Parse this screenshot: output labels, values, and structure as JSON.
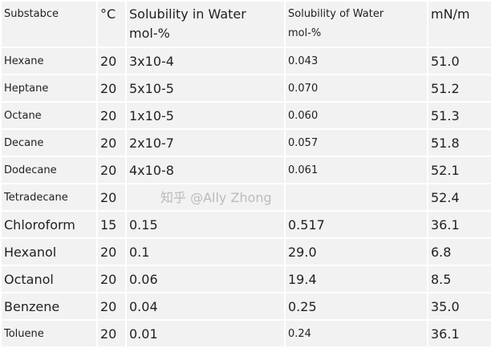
{
  "headers": [
    "Substabce",
    "°C",
    "Solubility in Water mol-%",
    "Solubility of Water mol-%",
    "mN/m"
  ],
  "rows": [
    {
      "substance": "Hexane",
      "temp": "20",
      "sol_in_water": "3x10-4",
      "sol_of_water": "0.043",
      "tension": "51.0"
    },
    {
      "substance": "Heptane",
      "temp": "20",
      "sol_in_water": "5x10-5",
      "sol_of_water": "0.070",
      "tension": "51.2"
    },
    {
      "substance": "Octane",
      "temp": "20",
      "sol_in_water": "1x10-5",
      "sol_of_water": "0.060",
      "tension": "51.3"
    },
    {
      "substance": "Decane",
      "temp": "20",
      "sol_in_water": "2x10-7",
      "sol_of_water": "0.057",
      "tension": "51.8"
    },
    {
      "substance": "Dodecane",
      "temp": "20",
      "sol_in_water": "4x10-8",
      "sol_of_water": "0.061",
      "tension": "52.1"
    },
    {
      "substance": "Tetradecane",
      "temp": "20",
      "sol_in_water": "",
      "sol_of_water": "",
      "tension": "52.4"
    },
    {
      "substance": "Chloroform",
      "temp": "15",
      "sol_in_water": "0.15",
      "sol_of_water": "0.517",
      "tension": "36.1"
    },
    {
      "substance": "Hexanol",
      "temp": "20",
      "sol_in_water": "0.1",
      "sol_of_water": "29.0",
      "tension": "6.8"
    },
    {
      "substance": "Octanol",
      "temp": "20",
      "sol_in_water": "0.06",
      "sol_of_water": "19.4",
      "tension": "8.5"
    },
    {
      "substance": "Benzene",
      "temp": "20",
      "sol_in_water": "0.04",
      "sol_of_water": "0.25",
      "tension": "35.0"
    },
    {
      "substance": "Toluene",
      "temp": "20",
      "sol_in_water": "0.01",
      "sol_of_water": "0.24",
      "tension": "36.1"
    }
  ],
  "watermark": "知乎 @Ally Zhong"
}
